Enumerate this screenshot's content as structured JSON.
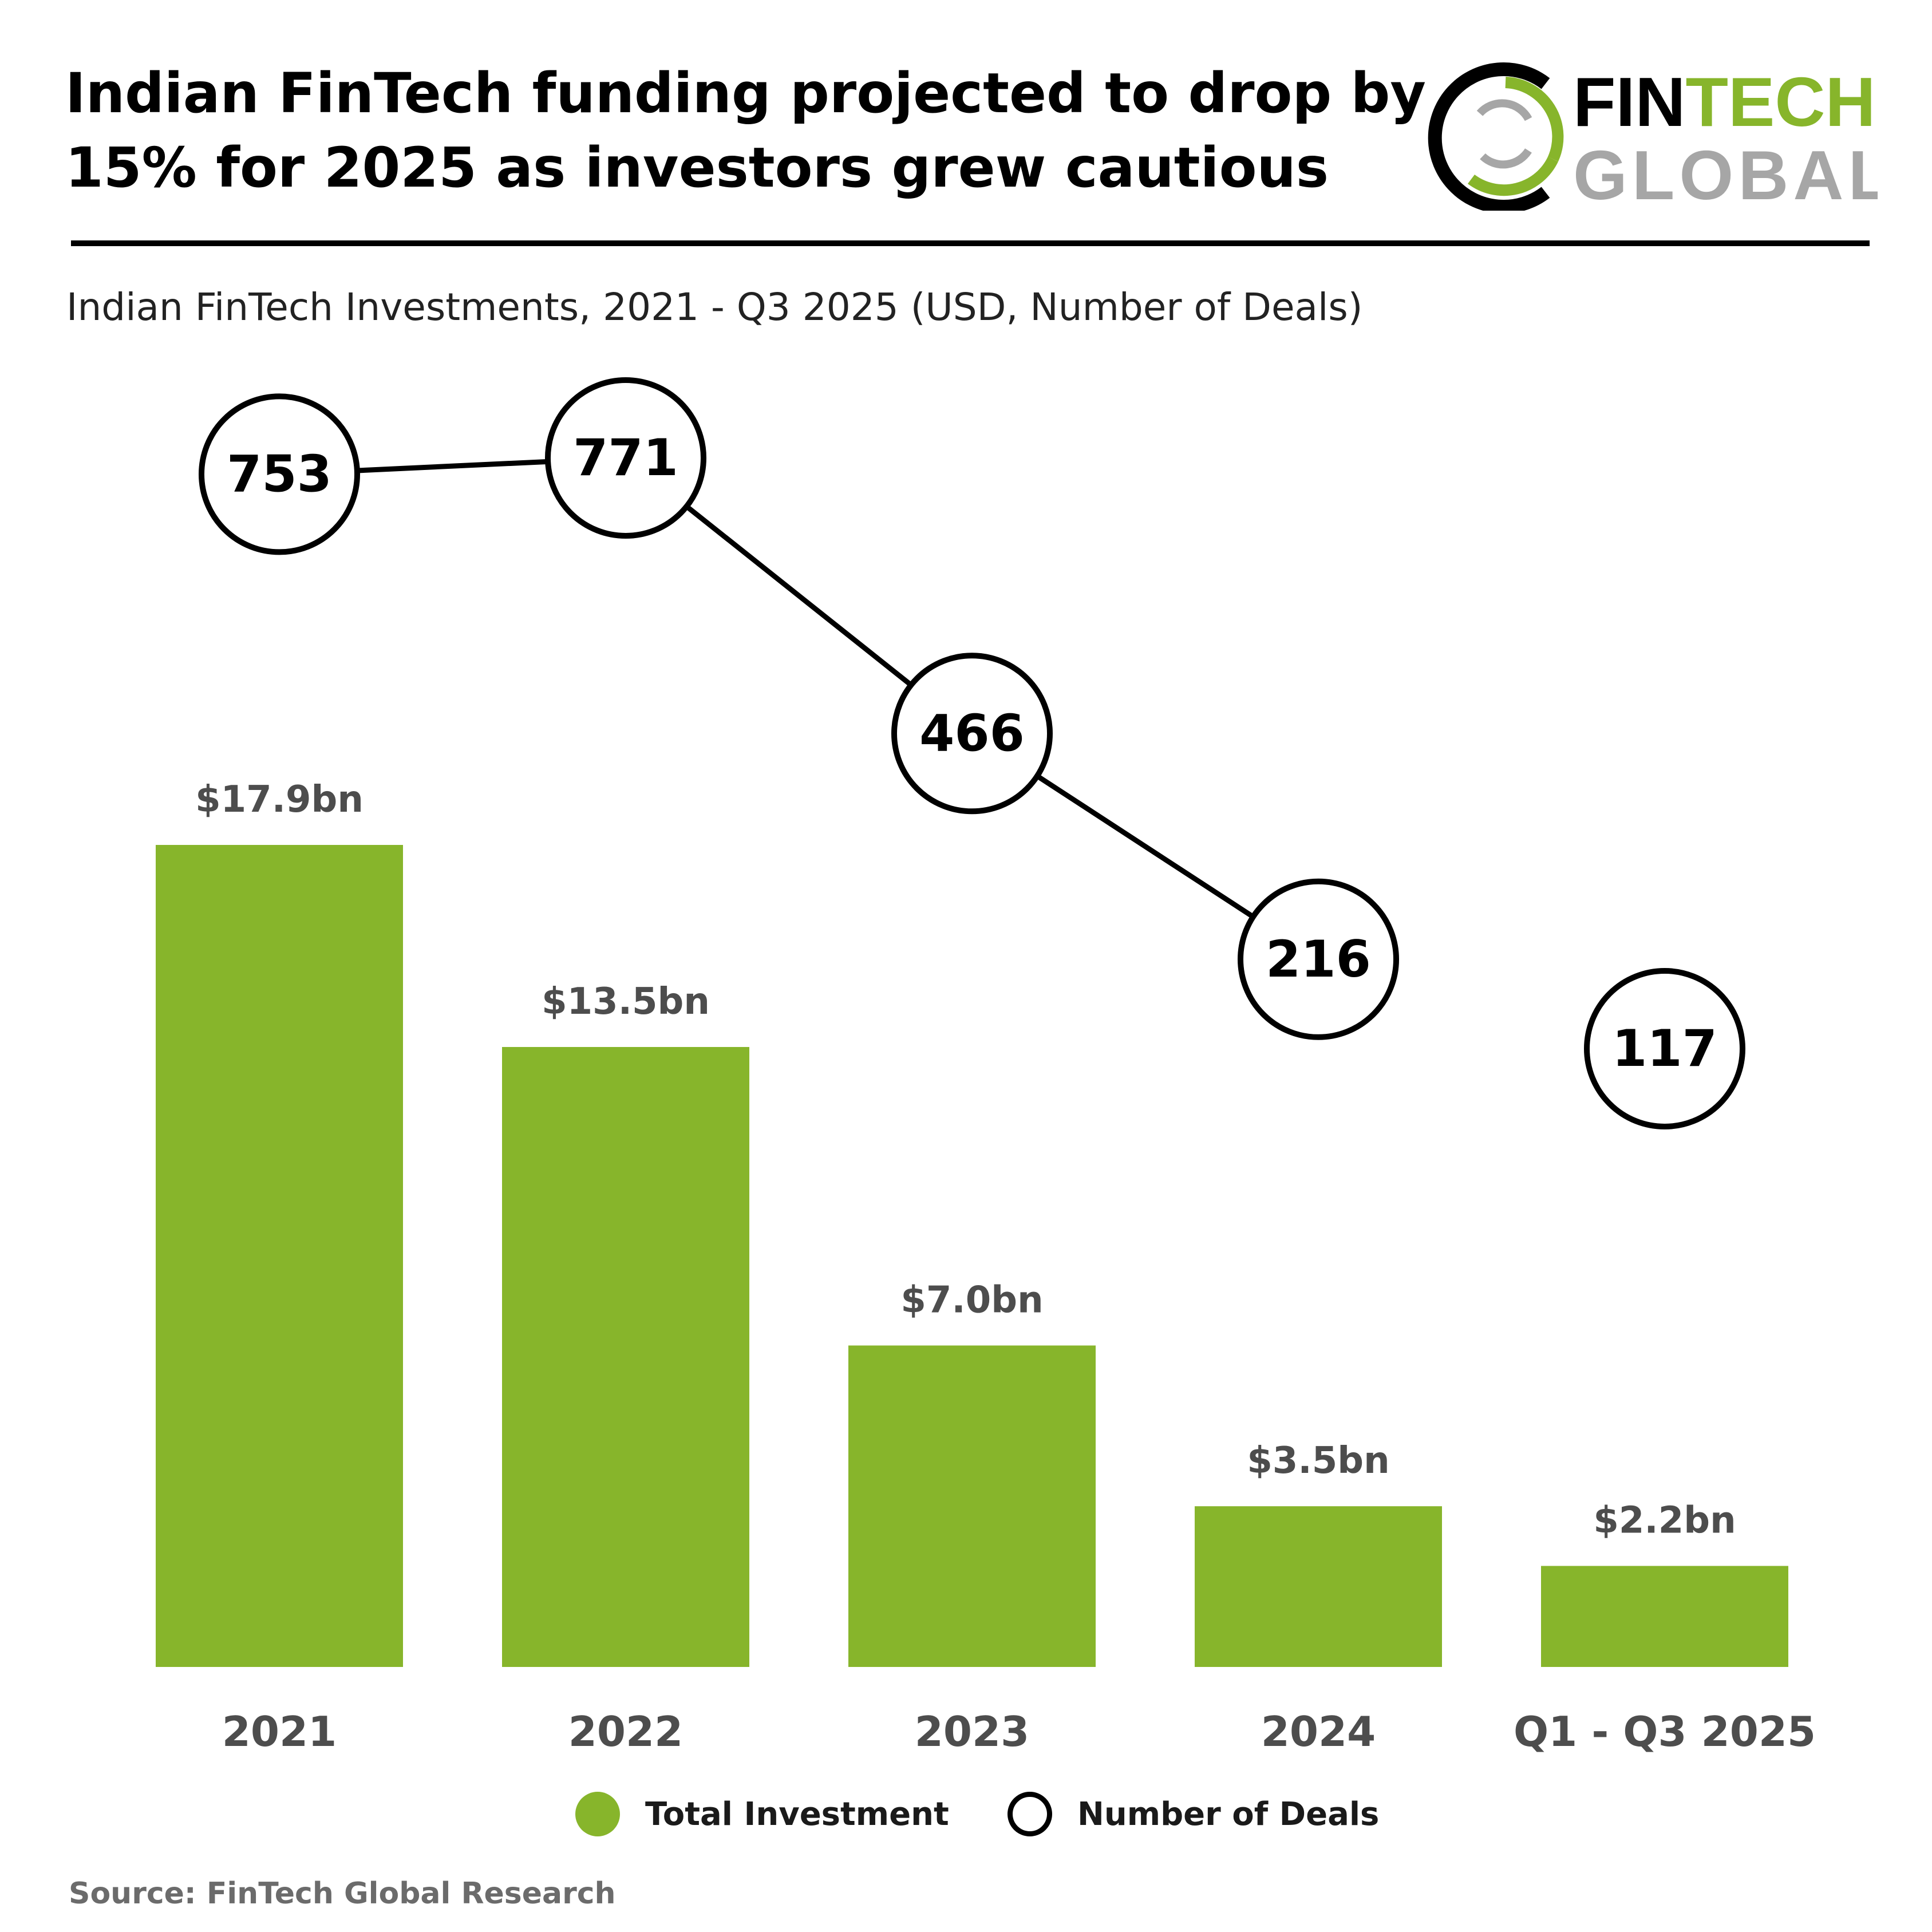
{
  "header": {
    "title": "Indian FinTech funding projected to drop by 15% for 2025 as investors grew cautious",
    "subtitle": "Indian FinTech Investments, 2021 - Q3 2025 (USD, Number of Deals)"
  },
  "logo": {
    "line1_a": "FIN",
    "line1_b": "TECH",
    "line2": "GLOBAL",
    "colors": {
      "dark": "#000000",
      "green": "#87b52b",
      "grey": "#a6a6a6"
    }
  },
  "chart_data": {
    "type": "bar",
    "categories": [
      "2021",
      "2022",
      "2023",
      "2024",
      "Q1 - Q3 2025"
    ],
    "series": [
      {
        "name": "Total Investment",
        "kind": "bar",
        "values": [
          17.9,
          13.5,
          7.0,
          3.5,
          2.2
        ],
        "labels": [
          "$17.9bn",
          "$13.5bn",
          "$7.0bn",
          "$3.5bn",
          "$2.2bn"
        ],
        "color": "#87b52b"
      },
      {
        "name": "Number of Deals",
        "kind": "line-markers",
        "values": [
          753,
          771,
          466,
          216,
          117
        ],
        "labels": [
          "753",
          "771",
          "466",
          "216",
          "117"
        ],
        "connected_through_index": 3,
        "color": "#000000"
      }
    ],
    "ylim": [
      0,
      17.9
    ],
    "y2lim": [
      117,
      771
    ],
    "grid": false,
    "legend_position": "bottom-center"
  },
  "legend": {
    "items": [
      {
        "label": "Total Investment"
      },
      {
        "label": "Number of Deals"
      }
    ]
  },
  "footer": {
    "source": "Source: FinTech Global Research"
  }
}
